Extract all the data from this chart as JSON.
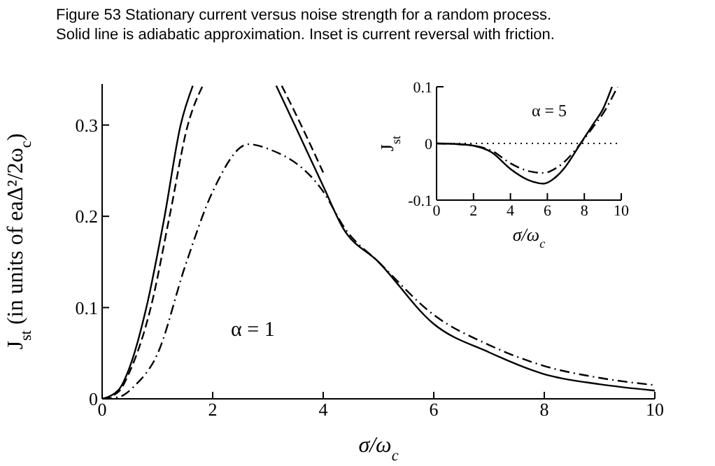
{
  "chart_data": [
    {
      "type": "line",
      "title": "Figure 53  Stationary current versus noise strength for a random process.",
      "subtitle": "Solid line is adiabatic approximation. Inset is current reversal with friction.",
      "xlabel": "σ/ω$_{c}$",
      "ylabel": "J$_{st}$ (in units of eaΔ²/2ω$_{c}$)",
      "xlim": [
        0,
        10
      ],
      "ylim": [
        0,
        0.345
      ],
      "xticks": [
        0,
        2,
        4,
        6,
        8,
        10
      ],
      "yticks": [
        0,
        0.1,
        0.2,
        0.3
      ],
      "annotations": [
        "α = 1"
      ],
      "series": [
        {
          "color": "#000000",
          "line_style": "solid",
          "x": [
            0,
            0.3,
            0.5,
            0.8,
            1.13,
            1.42,
            1.64,
            2.4,
            3.15,
            3.5,
            4,
            4.35,
            5,
            6,
            7,
            8,
            9,
            10
          ],
          "values": [
            0,
            0.01,
            0.035,
            0.1,
            0.2,
            0.3,
            0.343,
            null,
            0.343,
            0.298,
            0.233,
            0.188,
            0.15,
            0.082,
            0.051,
            0.027,
            0.016,
            0.009
          ]
        },
        {
          "color": "#000000",
          "line_style": "dashed",
          "x": [
            0,
            0.3,
            0.5,
            0.88,
            1.22,
            1.55,
            1.82,
            2.4,
            3.25,
            3.6,
            4
          ],
          "values": [
            0,
            0.008,
            0.03,
            0.1,
            0.2,
            0.3,
            0.343,
            null,
            0.343,
            0.3,
            0.248
          ]
        },
        {
          "color": "#000000",
          "line_style": "dashdot",
          "x": [
            0,
            0.3,
            0.6,
            1,
            1.5,
            2,
            2.65,
            3,
            4,
            4.4,
            5,
            6,
            7,
            8,
            9,
            10
          ],
          "values": [
            0,
            0.002,
            0.015,
            0.049,
            0.145,
            0.227,
            0.279,
            0.274,
            0.227,
            0.186,
            0.15,
            0.092,
            0.059,
            0.036,
            0.023,
            0.015
          ]
        }
      ]
    },
    {
      "type": "line",
      "xlabel": "σ/ω$_{c}$",
      "ylabel": "J$_{st}$",
      "xlim": [
        0,
        10
      ],
      "ylim": [
        -0.1,
        0.1
      ],
      "xticks": [
        0,
        2,
        4,
        6,
        8,
        10
      ],
      "yticks": [
        -0.1,
        0,
        0.1
      ],
      "annotations": [
        "α = 5"
      ],
      "ref_lines": [
        {
          "axis": "y",
          "value": 0,
          "line_style": "dotted",
          "color": "#000000"
        }
      ],
      "series": [
        {
          "color": "#000000",
          "line_style": "solid",
          "x": [
            0,
            1,
            2,
            3,
            4,
            5,
            5.8,
            6.5,
            7,
            7.8,
            8.5,
            9,
            9.5
          ],
          "values": [
            0,
            -0.001,
            -0.004,
            -0.016,
            -0.045,
            -0.065,
            -0.071,
            -0.058,
            -0.04,
            0,
            0.035,
            0.06,
            0.1
          ]
        },
        {
          "color": "#000000",
          "line_style": "dashdot",
          "x": [
            0,
            1,
            2,
            3,
            4,
            5,
            5.8,
            6.5,
            7,
            7.8,
            8.5,
            9,
            9.8
          ],
          "values": [
            0,
            -0.001,
            -0.004,
            -0.013,
            -0.035,
            -0.049,
            -0.052,
            -0.043,
            -0.03,
            0,
            0.03,
            0.052,
            0.1
          ]
        }
      ]
    }
  ]
}
